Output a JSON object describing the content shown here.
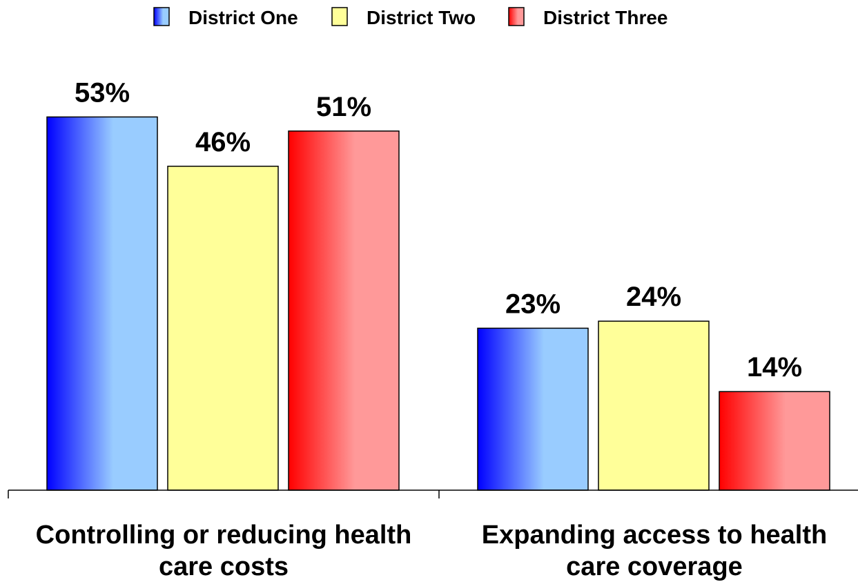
{
  "chart_data": {
    "type": "bar",
    "title": "",
    "xlabel": "",
    "ylabel": "",
    "ylim": [
      0,
      60
    ],
    "grid": false,
    "legend_position": "top-center",
    "categories": [
      [
        "Controlling or reducing health",
        "care costs"
      ],
      [
        "Expanding access to health",
        "care coverage"
      ]
    ],
    "series": [
      {
        "name": "District One",
        "values": [
          53,
          23
        ],
        "labels": [
          "53%",
          "23%"
        ],
        "color_dark": "#0000ff",
        "color_light": "#99ccff"
      },
      {
        "name": "District Two",
        "values": [
          46,
          24
        ],
        "labels": [
          "46%",
          "24%"
        ],
        "color_dark": "#ffff99",
        "color_light": "#ffff99"
      },
      {
        "name": "District Three",
        "values": [
          51,
          14
        ],
        "labels": [
          "51%",
          "14%"
        ],
        "color_dark": "#ff0000",
        "color_light": "#ff9999"
      }
    ]
  }
}
